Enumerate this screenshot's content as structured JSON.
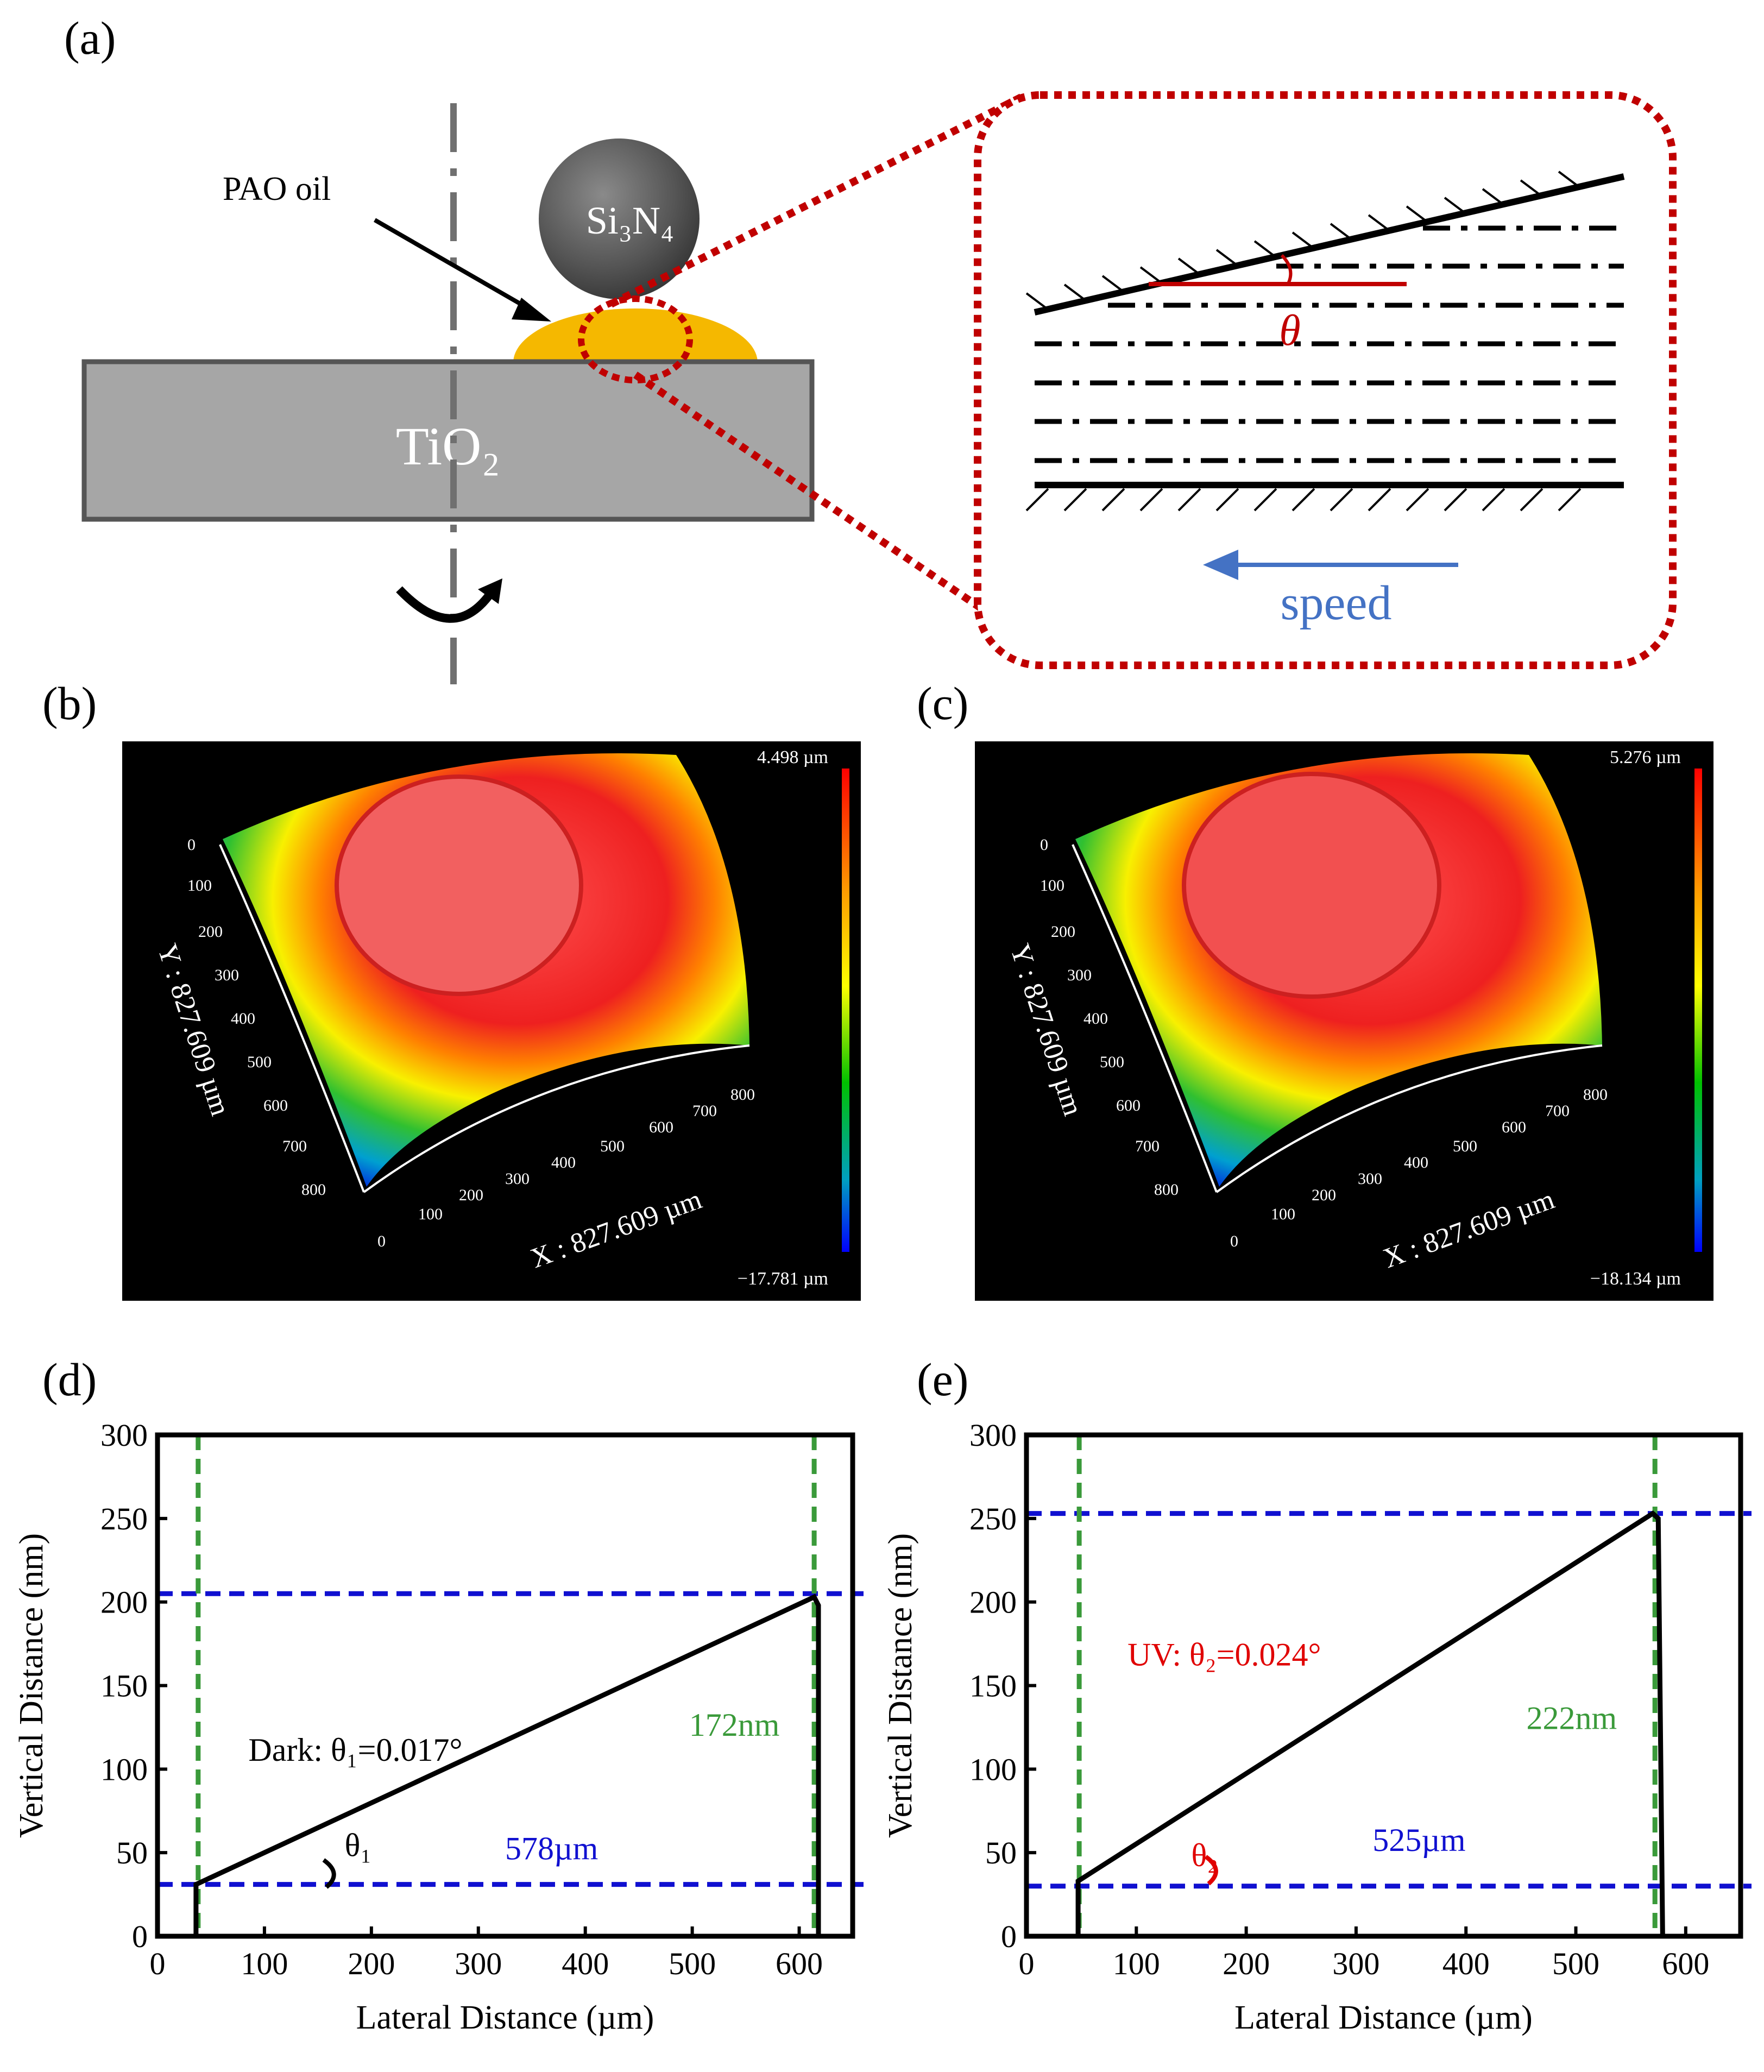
{
  "figure": {
    "panel_labels": {
      "a": "(a)",
      "b": "(b)",
      "c": "(c)",
      "d": "(d)",
      "e": "(e)"
    }
  },
  "schematic": {
    "ball_label": "Si₃N₄",
    "oil_label": "PAO oil",
    "substrate_label": "TiO₂",
    "angle_label": "θ",
    "speed_label": "speed",
    "colors": {
      "oil": "#f5b800",
      "ball": "#555555",
      "substrate": "#a6a6a6",
      "zoom": "#c00000",
      "arrow": "#4472c4",
      "angle": "#c00000"
    }
  },
  "surface_maps": [
    {
      "id": "b",
      "max_label": "4.498 µm",
      "min_label": "−17.781 µm",
      "x_axis_label": "X : 827.609 µm",
      "y_axis_label": "Y : 827.609 µm",
      "ticks": [
        "0",
        "100",
        "200",
        "300",
        "400",
        "500",
        "600",
        "700",
        "800"
      ]
    },
    {
      "id": "c",
      "max_label": "5.276 µm",
      "min_label": "−18.134 µm",
      "x_axis_label": "X : 827.609 µm",
      "y_axis_label": "Y : 827.609 µm",
      "ticks": [
        "0",
        "100",
        "200",
        "300",
        "400",
        "500",
        "600",
        "700",
        "800"
      ]
    }
  ],
  "chart_data": [
    {
      "id": "d",
      "type": "line",
      "xlabel": "Lateral Distance (µm)",
      "ylabel": "Vertical Distance (nm)",
      "xlim": [
        0,
        650
      ],
      "ylim": [
        0,
        300
      ],
      "xticks": [
        0,
        100,
        200,
        300,
        400,
        500,
        600
      ],
      "yticks": [
        0,
        50,
        100,
        150,
        200,
        250,
        300
      ],
      "series": [
        {
          "name": "profile",
          "x": [
            36,
            36,
            614,
            618,
            618
          ],
          "y": [
            0,
            31,
            203,
            198,
            0
          ],
          "color": "#000000"
        }
      ],
      "hlines": [
        {
          "y": 31,
          "color": "#1010d0"
        },
        {
          "y": 205,
          "color": "#1010d0"
        }
      ],
      "vlines": [
        {
          "x": 38,
          "color": "#3a9a3a"
        },
        {
          "x": 614,
          "color": "#3a9a3a"
        }
      ],
      "annotations": [
        {
          "text": "Dark: θ₁=0.017°",
          "x": 85,
          "y": 105,
          "color": "#000000"
        },
        {
          "text": "θ₁",
          "x": 175,
          "y": 48,
          "color": "#000000"
        },
        {
          "text": "578µm",
          "x": 325,
          "y": 46,
          "color": "#1010d0"
        },
        {
          "text": "172nm",
          "x": 497,
          "y": 120,
          "color": "#3a9a3a"
        }
      ]
    },
    {
      "id": "e",
      "type": "line",
      "xlabel": "Lateral Distance (µm)",
      "ylabel": "Vertical Distance (nm)",
      "xlim": [
        0,
        650
      ],
      "ylim": [
        0,
        300
      ],
      "xticks": [
        0,
        100,
        200,
        300,
        400,
        500,
        600
      ],
      "yticks": [
        0,
        50,
        100,
        150,
        200,
        250,
        300
      ],
      "series": [
        {
          "name": "profile",
          "x": [
            47,
            47,
            570,
            575,
            579
          ],
          "y": [
            0,
            33,
            253,
            250,
            0
          ],
          "color": "#000000"
        }
      ],
      "hlines": [
        {
          "y": 30,
          "color": "#1010d0"
        },
        {
          "y": 253,
          "color": "#1010d0"
        }
      ],
      "vlines": [
        {
          "x": 48,
          "color": "#3a9a3a"
        },
        {
          "x": 572,
          "color": "#3a9a3a"
        }
      ],
      "annotations": [
        {
          "text": "UV: θ₂=0.024°",
          "x": 92,
          "y": 162,
          "color": "#e00000"
        },
        {
          "text": "θ₂",
          "x": 150,
          "y": 42,
          "color": "#e00000"
        },
        {
          "text": "525µm",
          "x": 315,
          "y": 51,
          "color": "#1010d0"
        },
        {
          "text": "222nm",
          "x": 455,
          "y": 124,
          "color": "#3a9a3a"
        }
      ]
    }
  ]
}
